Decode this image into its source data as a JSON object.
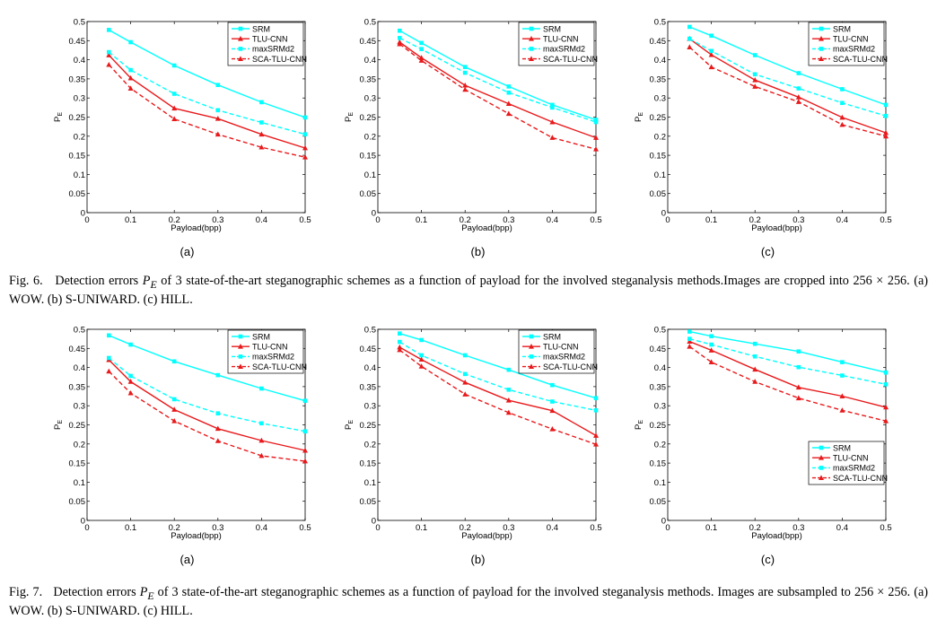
{
  "figures": [
    {
      "label": "Fig. 6.",
      "caption_pre": "Detection errors ",
      "metric": "P",
      "metric_sub": "E",
      "caption_post": " of 3 state-of-the-art steganographic schemes as a function of payload for the involved steganalysis methods.Images are cropped into 256 × 256. (a) WOW. (b) S-UNIWARD. (c) HILL."
    },
    {
      "label": "Fig. 7.",
      "caption_pre": "Detection errors ",
      "metric": "P",
      "metric_sub": "E",
      "caption_post": " of 3 state-of-the-art steganographic schemes as a function of payload for the involved steganalysis methods. Images are subsampled to 256 × 256. (a) WOW. (b) S-UNIWARD. (c) HILL."
    }
  ],
  "styles": {
    "SRM": {
      "color": "#00ffff",
      "marker": "square",
      "dash": false
    },
    "TLU-CNN": {
      "color": "#e8191b",
      "marker": "triangle",
      "dash": false
    },
    "maxSRMd2": {
      "color": "#00ffff",
      "marker": "square",
      "dash": true
    },
    "SCA-TLU-CNN": {
      "color": "#e8191b",
      "marker": "triangle",
      "dash": true
    }
  },
  "chart_data": [
    {
      "type": "line",
      "figure": 0,
      "sublabel": "(a)",
      "xlabel": "Payload(bpp)",
      "ylabel": "P",
      "ylabel_sub": "E",
      "xlim": [
        0,
        0.5
      ],
      "ylim": [
        0,
        0.5
      ],
      "xticks": [
        "0",
        "0.1",
        "0.2",
        "0.3",
        "0.4",
        "0.5"
      ],
      "yticks": [
        "0",
        "0.05",
        "0.1",
        "0.15",
        "0.2",
        "0.25",
        "0.3",
        "0.35",
        "0.4",
        "0.45",
        "0.5"
      ],
      "legend_position": "top-right",
      "x": [
        0.05,
        0.1,
        0.2,
        0.3,
        0.4,
        0.5
      ],
      "series": [
        {
          "name": "SRM",
          "values": [
            0.478,
            0.446,
            0.385,
            0.334,
            0.289,
            0.249
          ]
        },
        {
          "name": "TLU-CNN",
          "values": [
            0.412,
            0.352,
            0.273,
            0.246,
            0.205,
            0.169
          ]
        },
        {
          "name": "maxSRMd2",
          "values": [
            0.42,
            0.373,
            0.311,
            0.268,
            0.236,
            0.205
          ]
        },
        {
          "name": "SCA-TLU-CNN",
          "values": [
            0.387,
            0.325,
            0.245,
            0.205,
            0.171,
            0.145
          ]
        }
      ]
    },
    {
      "type": "line",
      "figure": 0,
      "sublabel": "(b)",
      "xlabel": "Payload(bpp)",
      "ylabel": "P",
      "ylabel_sub": "E",
      "xlim": [
        0,
        0.5
      ],
      "ylim": [
        0,
        0.5
      ],
      "xticks": [
        "0",
        "0.1",
        "0.2",
        "0.3",
        "0.4",
        "0.5"
      ],
      "yticks": [
        "0",
        "0.05",
        "0.1",
        "0.15",
        "0.2",
        "0.25",
        "0.3",
        "0.35",
        "0.4",
        "0.45",
        "0.5"
      ],
      "legend_position": "top-right",
      "x": [
        0.05,
        0.1,
        0.2,
        0.3,
        0.4,
        0.5
      ],
      "series": [
        {
          "name": "SRM",
          "values": [
            0.476,
            0.444,
            0.381,
            0.33,
            0.282,
            0.243
          ]
        },
        {
          "name": "TLU-CNN",
          "values": [
            0.446,
            0.405,
            0.333,
            0.285,
            0.237,
            0.196
          ]
        },
        {
          "name": "maxSRMd2",
          "values": [
            0.457,
            0.428,
            0.366,
            0.314,
            0.275,
            0.237
          ]
        },
        {
          "name": "SCA-TLU-CNN",
          "values": [
            0.441,
            0.398,
            0.322,
            0.259,
            0.196,
            0.166
          ]
        }
      ]
    },
    {
      "type": "line",
      "figure": 0,
      "sublabel": "(c)",
      "xlabel": "Payload(bpp)",
      "ylabel": "P",
      "ylabel_sub": "E",
      "xlim": [
        0,
        0.5
      ],
      "ylim": [
        0,
        0.5
      ],
      "xticks": [
        "0",
        "0.1",
        "0.2",
        "0.3",
        "0.4",
        "0.5"
      ],
      "yticks": [
        "0",
        "0.05",
        "0.1",
        "0.15",
        "0.2",
        "0.25",
        "0.3",
        "0.35",
        "0.4",
        "0.45",
        "0.5"
      ],
      "legend_position": "top-right",
      "x": [
        0.05,
        0.1,
        0.2,
        0.3,
        0.4,
        0.5
      ],
      "series": [
        {
          "name": "SRM",
          "values": [
            0.486,
            0.463,
            0.412,
            0.365,
            0.323,
            0.282
          ]
        },
        {
          "name": "TLU-CNN",
          "values": [
            0.455,
            0.413,
            0.347,
            0.302,
            0.249,
            0.209
          ]
        },
        {
          "name": "maxSRMd2",
          "values": [
            0.455,
            0.423,
            0.362,
            0.325,
            0.287,
            0.253
          ]
        },
        {
          "name": "SCA-TLU-CNN",
          "values": [
            0.433,
            0.381,
            0.33,
            0.29,
            0.23,
            0.2
          ]
        }
      ]
    },
    {
      "type": "line",
      "figure": 1,
      "sublabel": "(a)",
      "xlabel": "Payload(bpp)",
      "ylabel": "P",
      "ylabel_sub": "E",
      "xlim": [
        0,
        0.5
      ],
      "ylim": [
        0,
        0.5
      ],
      "xticks": [
        "0",
        "0.1",
        "0.2",
        "0.3",
        "0.4",
        "0.5"
      ],
      "yticks": [
        "0",
        "0.05",
        "0.1",
        "0.15",
        "0.2",
        "0.25",
        "0.3",
        "0.35",
        "0.4",
        "0.45",
        "0.5"
      ],
      "legend_position": "top-right",
      "x": [
        0.05,
        0.1,
        0.2,
        0.3,
        0.4,
        0.5
      ],
      "series": [
        {
          "name": "SRM",
          "values": [
            0.484,
            0.46,
            0.416,
            0.38,
            0.345,
            0.313
          ]
        },
        {
          "name": "TLU-CNN",
          "values": [
            0.42,
            0.363,
            0.29,
            0.24,
            0.209,
            0.183
          ]
        },
        {
          "name": "maxSRMd2",
          "values": [
            0.425,
            0.378,
            0.317,
            0.28,
            0.254,
            0.233
          ]
        },
        {
          "name": "SCA-TLU-CNN",
          "values": [
            0.39,
            0.333,
            0.26,
            0.208,
            0.169,
            0.155
          ]
        }
      ]
    },
    {
      "type": "line",
      "figure": 1,
      "sublabel": "(b)",
      "xlabel": "Payload(bpp)",
      "ylabel": "P",
      "ylabel_sub": "E",
      "xlim": [
        0,
        0.5
      ],
      "ylim": [
        0,
        0.5
      ],
      "xticks": [
        "0",
        "0.1",
        "0.2",
        "0.3",
        "0.4",
        "0.5"
      ],
      "yticks": [
        "0",
        "0.05",
        "0.1",
        "0.15",
        "0.2",
        "0.25",
        "0.3",
        "0.35",
        "0.4",
        "0.45",
        "0.5"
      ],
      "legend_position": "top-right",
      "x": [
        0.05,
        0.1,
        0.2,
        0.3,
        0.4,
        0.5
      ],
      "series": [
        {
          "name": "SRM",
          "values": [
            0.489,
            0.472,
            0.432,
            0.394,
            0.354,
            0.32
          ]
        },
        {
          "name": "TLU-CNN",
          "values": [
            0.453,
            0.421,
            0.361,
            0.314,
            0.287,
            0.222
          ]
        },
        {
          "name": "maxSRMd2",
          "values": [
            0.467,
            0.432,
            0.383,
            0.342,
            0.311,
            0.288
          ]
        },
        {
          "name": "SCA-TLU-CNN",
          "values": [
            0.446,
            0.403,
            0.33,
            0.282,
            0.239,
            0.199
          ]
        }
      ]
    },
    {
      "type": "line",
      "figure": 1,
      "sublabel": "(c)",
      "xlabel": "Payload(bpp)",
      "ylabel": "P",
      "ylabel_sub": "E",
      "xlim": [
        0,
        0.5
      ],
      "ylim": [
        0,
        0.5
      ],
      "xticks": [
        "0",
        "0.1",
        "0.2",
        "0.3",
        "0.4",
        "0.5"
      ],
      "yticks": [
        "0",
        "0.05",
        "0.1",
        "0.15",
        "0.2",
        "0.25",
        "0.3",
        "0.35",
        "0.4",
        "0.45",
        "0.5"
      ],
      "legend_position": "bottom-right",
      "x": [
        0.05,
        0.1,
        0.2,
        0.3,
        0.4,
        0.5
      ],
      "series": [
        {
          "name": "SRM",
          "values": [
            0.494,
            0.482,
            0.462,
            0.442,
            0.414,
            0.387
          ]
        },
        {
          "name": "TLU-CNN",
          "values": [
            0.468,
            0.445,
            0.395,
            0.348,
            0.325,
            0.296
          ]
        },
        {
          "name": "maxSRMd2",
          "values": [
            0.475,
            0.46,
            0.429,
            0.401,
            0.379,
            0.356
          ]
        },
        {
          "name": "SCA-TLU-CNN",
          "values": [
            0.455,
            0.414,
            0.363,
            0.32,
            0.288,
            0.26
          ]
        }
      ]
    }
  ]
}
